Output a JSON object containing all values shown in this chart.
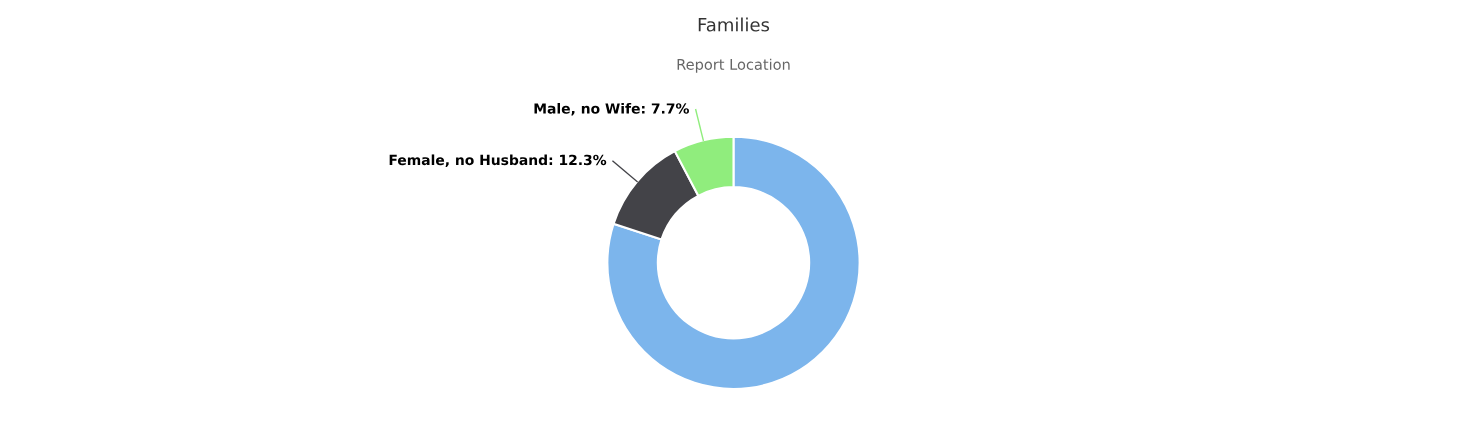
{
  "chart_data": {
    "type": "donut",
    "title": "Families",
    "subtitle": "Report Location",
    "categories": [
      null,
      "Female, no Husband",
      "Male, no Wife"
    ],
    "values": [
      80,
      12.3,
      7.7
    ],
    "value_labels": [
      null,
      "12.3%",
      "7.7%"
    ],
    "colors": [
      "#7cb5ec",
      "#434348",
      "#90ed7d"
    ],
    "legend": false
  }
}
